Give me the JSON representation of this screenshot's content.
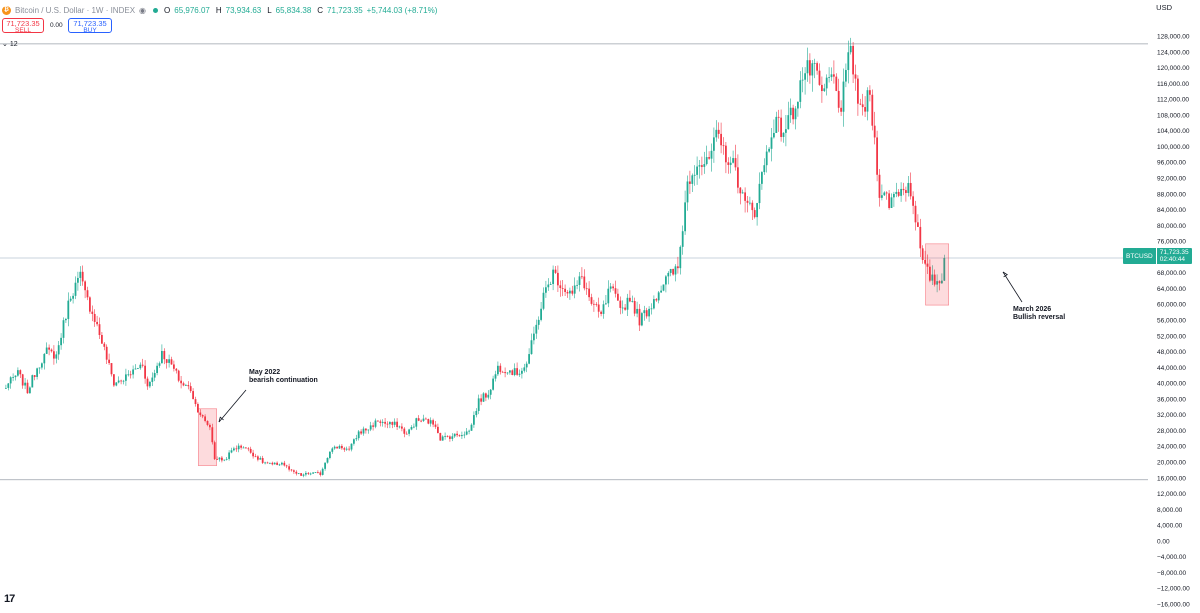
{
  "header": {
    "symbol_title": "Bitcoin / U.S. Dollar · 1W · INDEX",
    "coin_glyph": "₿",
    "open_label": "O",
    "open_value": "65,976.07",
    "high_label": "H",
    "high_value": "73,934.63",
    "low_label": "L",
    "low_value": "65,834.38",
    "close_label": "C",
    "close_value": "71,723.35",
    "change": "+5,744.03 (+8.71%)",
    "up_color": "#22ab94",
    "down_color": "#f23645"
  },
  "trade": {
    "sell_price": "71,723.35",
    "sell_label": "SELL",
    "spread": "0.00",
    "buy_price": "71,723.35",
    "buy_label": "BUY"
  },
  "indicators": {
    "chevron": "⌄",
    "count": "12"
  },
  "currency": "USD",
  "price_label": {
    "symbol": "BTCUSD",
    "price": "71,723.35",
    "countdown": "02:40:44"
  },
  "annotations": [
    {
      "line1": "May 2022",
      "line2": "bearish continuation"
    },
    {
      "line1": "March 2026",
      "line2": "Bullish reversal"
    }
  ],
  "logo_text": "17",
  "chart_data": {
    "type": "candlestick",
    "interval": "1W",
    "ylim": [
      -16000,
      128000
    ],
    "yticks": [
      128000,
      124000,
      120000,
      116000,
      112000,
      108000,
      104000,
      100000,
      96000,
      92000,
      88000,
      84000,
      80000,
      76000,
      72000,
      68000,
      64000,
      60000,
      56000,
      52000,
      48000,
      44000,
      40000,
      36000,
      32000,
      28000,
      24000,
      20000,
      16000,
      12000,
      8000,
      4000,
      0,
      -4000,
      -8000,
      -12000,
      -16000
    ],
    "horizontal_levels": [
      126000,
      71723.35,
      15500
    ],
    "anchors": [
      [
        0,
        38500
      ],
      [
        6,
        42500
      ],
      [
        10,
        38000
      ],
      [
        14,
        44000
      ],
      [
        18,
        48000
      ],
      [
        22,
        47000
      ],
      [
        26,
        57500
      ],
      [
        28,
        62500
      ],
      [
        32,
        67000
      ],
      [
        34,
        62500
      ],
      [
        38,
        56500
      ],
      [
        42,
        48500
      ],
      [
        46,
        40000
      ],
      [
        50,
        41000
      ],
      [
        54,
        43000
      ],
      [
        58,
        45000
      ],
      [
        60,
        39000
      ],
      [
        62,
        41500
      ],
      [
        66,
        47500
      ],
      [
        70,
        44500
      ],
      [
        74,
        40000
      ],
      [
        78,
        38500
      ],
      [
        80,
        34500
      ],
      [
        84,
        30000
      ],
      [
        86,
        29000
      ],
      [
        88,
        21000
      ],
      [
        92,
        20500
      ],
      [
        96,
        23500
      ],
      [
        100,
        24000
      ],
      [
        104,
        22000
      ],
      [
        108,
        20000
      ],
      [
        112,
        19200
      ],
      [
        116,
        19800
      ],
      [
        120,
        17500
      ],
      [
        124,
        16600
      ],
      [
        128,
        17200
      ],
      [
        132,
        17000
      ],
      [
        136,
        23000
      ],
      [
        140,
        24000
      ],
      [
        144,
        23000
      ],
      [
        148,
        27500
      ],
      [
        152,
        28500
      ],
      [
        156,
        30500
      ],
      [
        160,
        29500
      ],
      [
        164,
        29500
      ],
      [
        168,
        27000
      ],
      [
        172,
        30500
      ],
      [
        176,
        30500
      ],
      [
        180,
        29500
      ],
      [
        182,
        26000
      ],
      [
        186,
        26500
      ],
      [
        190,
        27000
      ],
      [
        194,
        27800
      ],
      [
        198,
        35500
      ],
      [
        202,
        37500
      ],
      [
        206,
        44000
      ],
      [
        210,
        43500
      ],
      [
        214,
        42500
      ],
      [
        218,
        45000
      ],
      [
        221,
        52000
      ],
      [
        225,
        62000
      ],
      [
        229,
        68000
      ],
      [
        233,
        64500
      ],
      [
        237,
        62500
      ],
      [
        241,
        67000
      ],
      [
        245,
        60000
      ],
      [
        249,
        57000
      ],
      [
        253,
        64500
      ],
      [
        257,
        58000
      ],
      [
        261,
        62000
      ],
      [
        265,
        56000
      ],
      [
        269,
        59000
      ],
      [
        273,
        63500
      ],
      [
        277,
        67000
      ],
      [
        281,
        69000
      ],
      [
        285,
        91000
      ],
      [
        289,
        96500
      ],
      [
        293,
        95000
      ],
      [
        297,
        102000
      ],
      [
        301,
        98000
      ],
      [
        305,
        94000
      ],
      [
        309,
        85000
      ],
      [
        313,
        84000
      ],
      [
        317,
        95500
      ],
      [
        321,
        106000
      ],
      [
        325,
        104000
      ],
      [
        329,
        109000
      ],
      [
        333,
        118000
      ],
      [
        337,
        120000
      ],
      [
        341,
        113000
      ],
      [
        345,
        118000
      ],
      [
        349,
        110000
      ],
      [
        353,
        124500
      ],
      [
        357,
        108000
      ],
      [
        361,
        113000
      ],
      [
        365,
        89000
      ],
      [
        369,
        86000
      ],
      [
        373,
        89000
      ],
      [
        377,
        90000
      ],
      [
        379,
        86500
      ],
      [
        383,
        70000
      ],
      [
        387,
        66000
      ],
      [
        391,
        65976.07
      ],
      [
        392,
        71723.35
      ]
    ],
    "last_close": 71723.35
  }
}
